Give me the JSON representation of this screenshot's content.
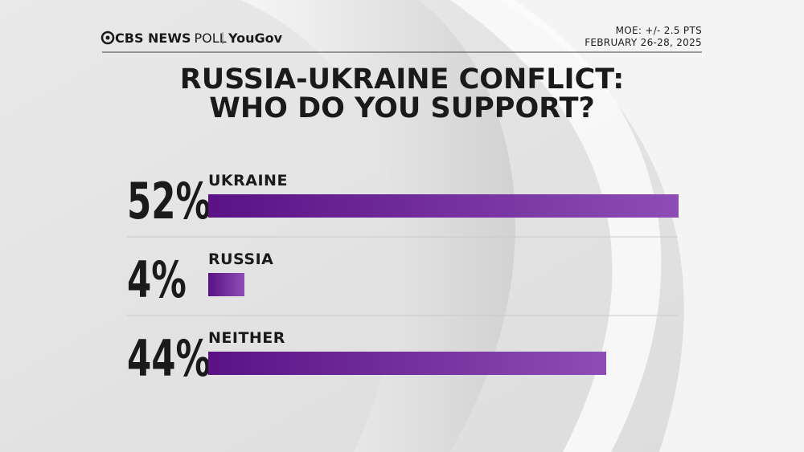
{
  "chart_data": {
    "type": "bar",
    "orientation": "horizontal",
    "title": [
      "RUSSIA-UKRAINE CONFLICT:",
      "WHO DO YOU SUPPORT?"
    ],
    "source": {
      "brand": "CBS NEWS",
      "product": "POLL",
      "partner": "YouGov"
    },
    "notes": [
      "MOE: +/- 2.5 PTS",
      "FEBRUARY 26-28, 2025"
    ],
    "categories": [
      "UKRAINE",
      "RUSSIA",
      "NEITHER"
    ],
    "values": [
      52,
      4,
      44
    ],
    "value_labels": [
      "52%",
      "4%",
      "44%"
    ],
    "color": [
      "#5a1285",
      "#8d4db5"
    ]
  }
}
